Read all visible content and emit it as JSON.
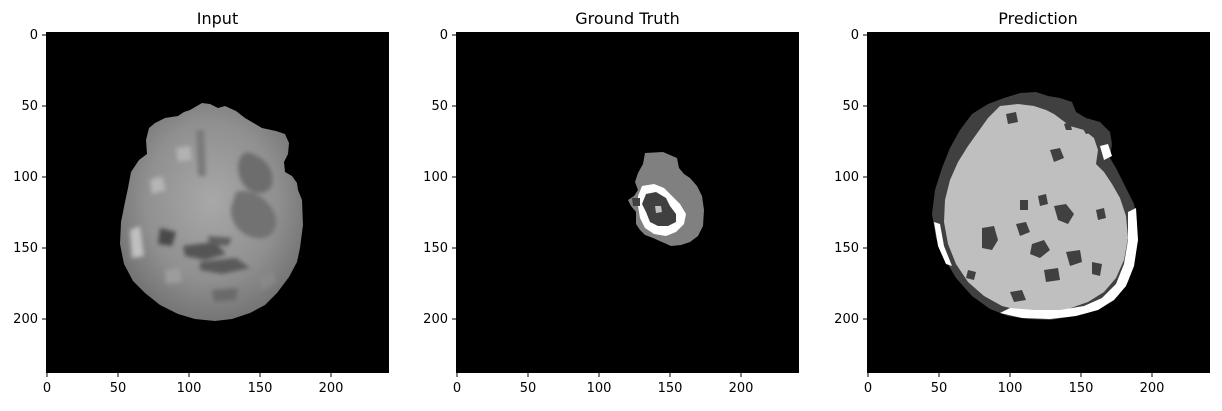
{
  "figure": {
    "background": "#ffffff",
    "image_extent": [
      0,
      240
    ],
    "panels": [
      {
        "title": "Input",
        "x_ticks": [
          "0",
          "50",
          "100",
          "150",
          "200"
        ],
        "y_ticks": [
          "0",
          "50",
          "100",
          "150",
          "200"
        ],
        "content": "grayscale MRI brain slice"
      },
      {
        "title": "Ground Truth",
        "x_ticks": [
          "0",
          "50",
          "100",
          "150",
          "200"
        ],
        "y_ticks": [
          "0",
          "50",
          "100",
          "150",
          "200"
        ],
        "content": "tumor segmentation mask"
      },
      {
        "title": "Prediction",
        "x_ticks": [
          "0",
          "50",
          "100",
          "150",
          "200"
        ],
        "y_ticks": [
          "0",
          "50",
          "100",
          "150",
          "200"
        ],
        "content": "predicted segmentation mask"
      }
    ]
  },
  "colors": {
    "image_background": "#000000",
    "mask_dark": "#3f3f3f",
    "mask_mid": "#808080",
    "mask_light": "#bfbfbf",
    "mask_white": "#ffffff"
  }
}
